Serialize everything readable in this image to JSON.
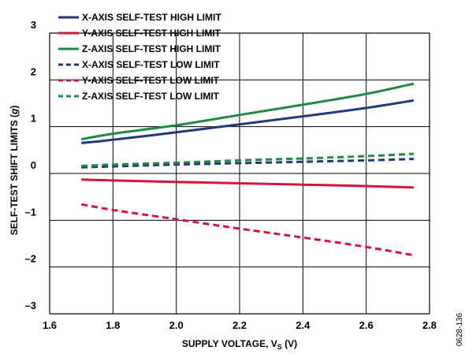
{
  "figure_code": "0628-136",
  "chart_data": {
    "type": "line",
    "title": "",
    "xlabel_main": "SUPPLY VOLTAGE, V",
    "xlabel_sub": "S",
    "xlabel_tail": " (V)",
    "ylabel_main": "SELF-TEST SHIFT LIMITS (",
    "ylabel_unit": "g",
    "ylabel_tail": ")",
    "xlim": [
      1.6,
      2.8
    ],
    "ylim": [
      -3,
      3
    ],
    "xticks": [
      1.6,
      1.8,
      2.0,
      2.2,
      2.4,
      2.6,
      2.8
    ],
    "xtick_labels": [
      "1.6",
      "1.8",
      "2.0",
      "2.2",
      "2.4",
      "2.6",
      "2.8"
    ],
    "yticks": [
      -3,
      -2,
      -1,
      0,
      1,
      2,
      3
    ],
    "ytick_labels": [
      "–3",
      "–2",
      "–1",
      "0",
      "1",
      "2",
      "3"
    ],
    "grid": true,
    "legend_position": "top-left",
    "x": [
      1.7,
      1.8,
      2.0,
      2.2,
      2.4,
      2.6,
      2.75
    ],
    "series": [
      {
        "name": "X-AXIS SELF-TEST HIGH LIMIT",
        "color": "#1f3a7a",
        "dash": "solid",
        "values": [
          0.65,
          0.72,
          0.88,
          1.05,
          1.22,
          1.4,
          1.56
        ]
      },
      {
        "name": "Y-AXIS SELF-TEST HIGH LIMIT",
        "color": "#d4163c",
        "dash": "solid",
        "values": [
          -0.13,
          -0.15,
          -0.18,
          -0.21,
          -0.24,
          -0.27,
          -0.3
        ]
      },
      {
        "name": "Z-AXIS SELF-TEST HIGH LIMIT",
        "color": "#1f8a45",
        "dash": "solid",
        "values": [
          0.73,
          0.85,
          1.03,
          1.25,
          1.47,
          1.7,
          1.92
        ]
      },
      {
        "name": "X-AXIS SELF-TEST LOW LIMIT",
        "color": "#1f3a7a",
        "dash": "dashed",
        "values": [
          0.13,
          0.15,
          0.19,
          0.22,
          0.25,
          0.28,
          0.31
        ]
      },
      {
        "name": "Y-AXIS SELF-TEST LOW LIMIT",
        "color": "#d4163c",
        "dash": "dashed",
        "values": [
          -0.66,
          -0.78,
          -0.98,
          -1.18,
          -1.37,
          -1.57,
          -1.75
        ]
      },
      {
        "name": "Z-AXIS SELF-TEST LOW LIMIT",
        "color": "#1f8a45",
        "dash": "dashed",
        "values": [
          0.16,
          0.19,
          0.23,
          0.28,
          0.32,
          0.37,
          0.42
        ]
      }
    ]
  }
}
